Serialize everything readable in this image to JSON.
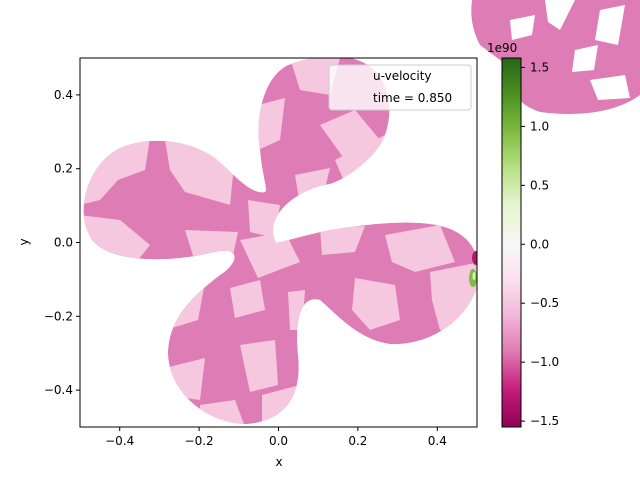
{
  "chart_data": {
    "type": "heatmap",
    "title": "",
    "xlabel": "x",
    "ylabel": "y",
    "xlim": [
      -0.5,
      0.5
    ],
    "ylim": [
      -0.5,
      0.5
    ],
    "x_ticks": [
      -0.4,
      -0.2,
      0.0,
      0.2,
      0.4
    ],
    "x_tick_labels": [
      "−0.4",
      "−0.2",
      "0.0",
      "0.2",
      "0.4"
    ],
    "y_ticks": [
      0.4,
      0.2,
      0.0,
      -0.2,
      -0.4
    ],
    "y_tick_labels": [
      "0.4",
      "0.2",
      "0.0",
      "−0.2",
      "−0.4"
    ],
    "legend": {
      "placement": "top-right",
      "entries": [
        "u-velocity",
        "time = 0.850"
      ]
    },
    "field": "u-velocity",
    "time": 0.85,
    "domain_shape": "four-lobed",
    "colormap": "PiYG",
    "colorbar": {
      "range": [
        -1.55,
        1.58
      ],
      "offset_label": "1e90",
      "ticks": [
        1.5,
        1.0,
        0.5,
        0.0,
        -0.5,
        -1.0,
        -1.5
      ],
      "tick_labels": [
        "1.5",
        "1.0",
        "0.5",
        "0.0",
        "−0.5",
        "−1.0",
        "−1.5"
      ]
    },
    "colors": {
      "light_pink": "#f5c8e0",
      "medium_pink": "#de7db5",
      "dark_magenta": "#b0186a",
      "green": "#7cbc3f"
    }
  }
}
